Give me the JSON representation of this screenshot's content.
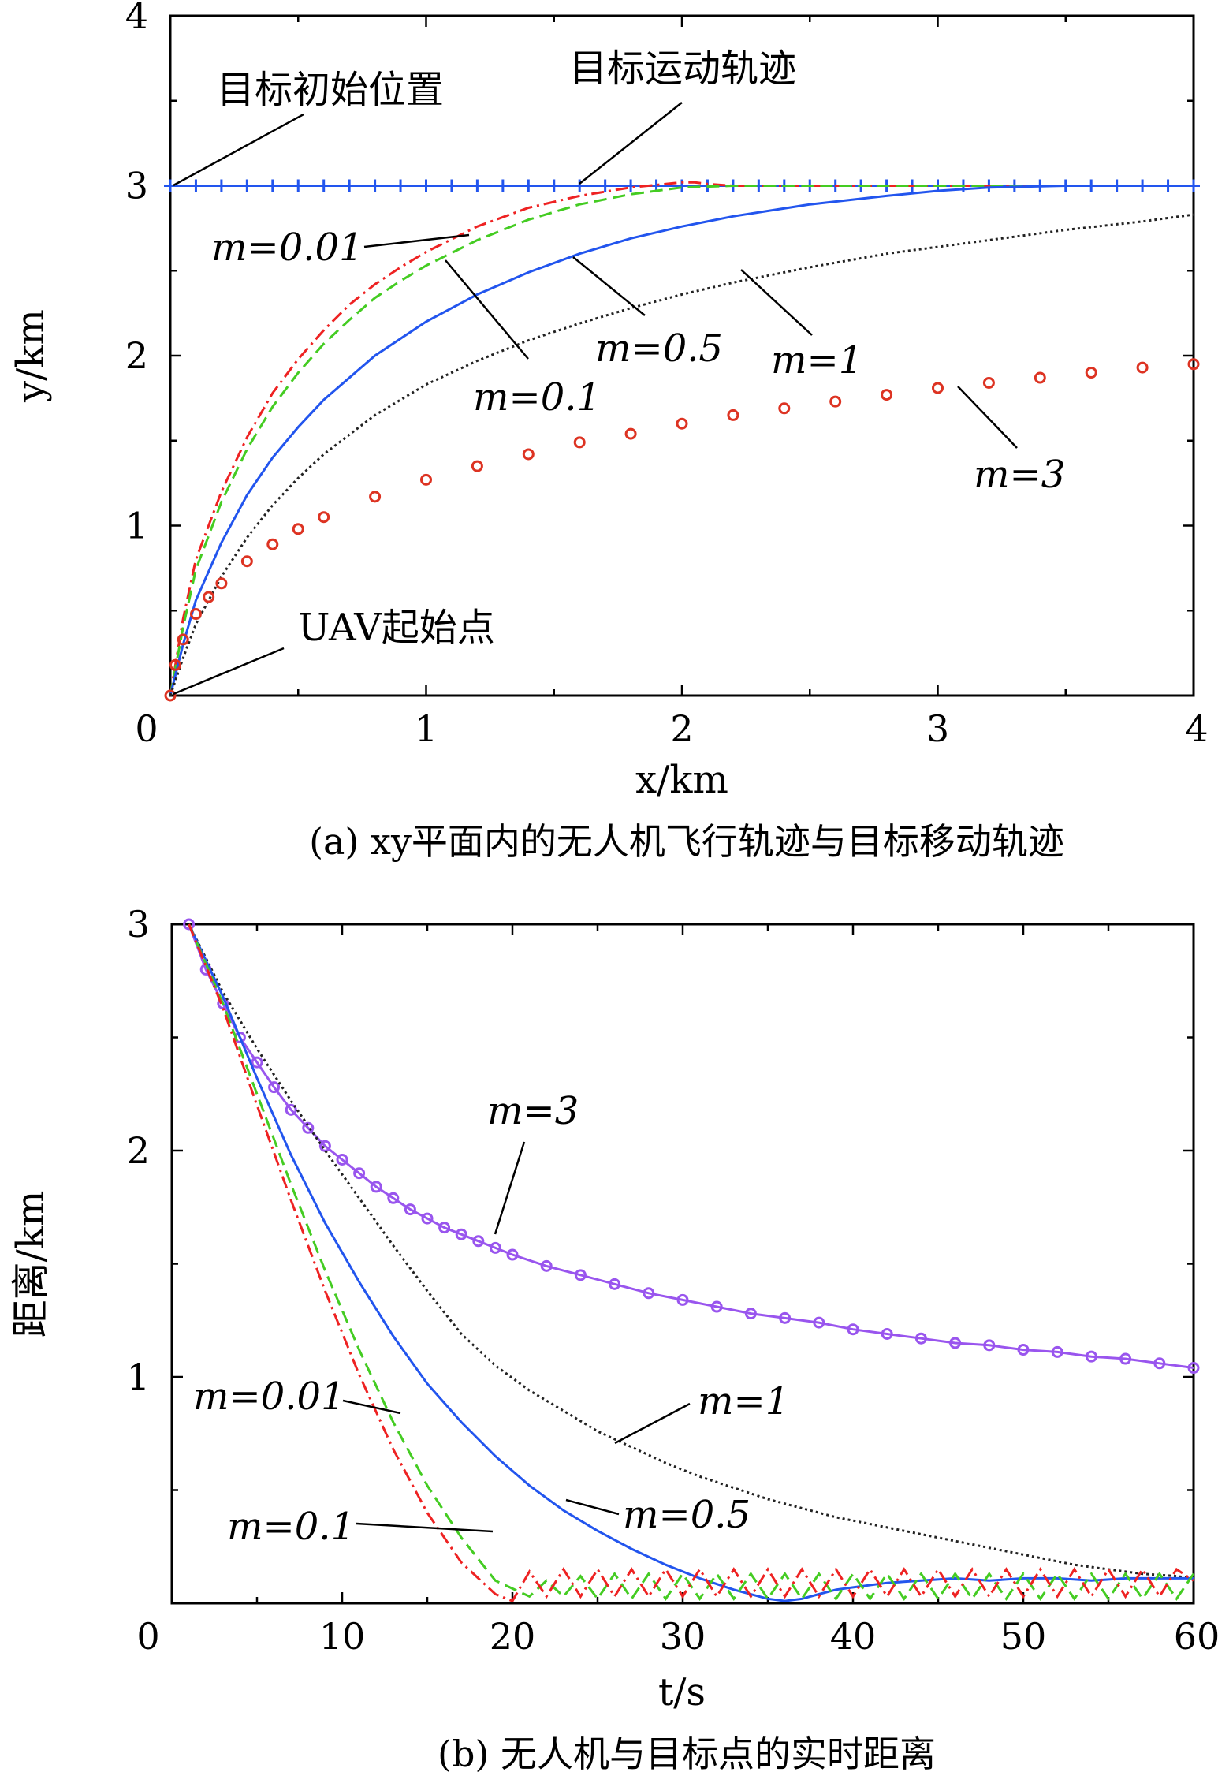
{
  "chart_data": [
    {
      "type": "line",
      "caption": "(a) xy平面内的无人机飞行轨迹与目标移动轨迹",
      "xlabel": "x/km",
      "ylabel": "y/km",
      "xlim": [
        0,
        4
      ],
      "ylim": [
        0,
        4
      ],
      "xticks": [
        "0",
        "1",
        "2",
        "3",
        "4"
      ],
      "yticks": [
        "0",
        "1",
        "2",
        "3",
        "4"
      ],
      "grid": false,
      "annotations": {
        "target_start": "目标初始位置",
        "target_path": "目标运动轨迹",
        "uav_start": "UAV起始点",
        "m001": "m=0.01",
        "m01": "m=0.1",
        "m05": "m=0.5",
        "m1": "m=1",
        "m3": "m=3"
      },
      "series": [
        {
          "name": "目标运动轨迹",
          "color": "#2255ee",
          "style": "plus-marker",
          "x": [
            0.0,
            0.1,
            0.2,
            0.3,
            0.4,
            0.5,
            0.6,
            0.7,
            0.8,
            0.9,
            1.0,
            1.1,
            1.2,
            1.3,
            1.4,
            1.5,
            1.6,
            1.7,
            1.8,
            1.9,
            2.0,
            2.1,
            2.2,
            2.3,
            2.4,
            2.5,
            2.6,
            2.7,
            2.8,
            2.9,
            3.0,
            3.1,
            3.2,
            3.3,
            3.4,
            3.5,
            3.6,
            3.7,
            3.8,
            3.9,
            4.0
          ],
          "y": [
            3,
            3,
            3,
            3,
            3,
            3,
            3,
            3,
            3,
            3,
            3,
            3,
            3,
            3,
            3,
            3,
            3,
            3,
            3,
            3,
            3,
            3,
            3,
            3,
            3,
            3,
            3,
            3,
            3,
            3,
            3,
            3,
            3,
            3,
            3,
            3,
            3,
            3,
            3,
            3,
            3
          ]
        },
        {
          "name": "m=0.01",
          "color": "#ee2222",
          "style": "dashdot",
          "x": [
            0,
            0.05,
            0.1,
            0.2,
            0.3,
            0.4,
            0.5,
            0.6,
            0.7,
            0.8,
            0.9,
            1.0,
            1.2,
            1.4,
            1.6,
            1.8,
            2.0,
            2.05,
            2.1,
            2.2,
            2.5,
            3.0,
            3.5,
            4.0
          ],
          "y": [
            0,
            0.45,
            0.8,
            1.2,
            1.52,
            1.78,
            1.98,
            2.15,
            2.3,
            2.42,
            2.52,
            2.61,
            2.76,
            2.87,
            2.94,
            2.99,
            3.02,
            3.02,
            3.01,
            3.0,
            3.0,
            3.0,
            3.0,
            3.0
          ]
        },
        {
          "name": "m=0.1",
          "color": "#44cc22",
          "style": "dashed",
          "x": [
            0,
            0.05,
            0.1,
            0.2,
            0.3,
            0.4,
            0.5,
            0.6,
            0.7,
            0.8,
            0.9,
            1.0,
            1.2,
            1.4,
            1.6,
            1.8,
            2.0,
            2.2,
            2.5,
            3.0,
            3.5,
            4.0
          ],
          "y": [
            0,
            0.4,
            0.74,
            1.14,
            1.45,
            1.7,
            1.9,
            2.07,
            2.21,
            2.34,
            2.44,
            2.53,
            2.68,
            2.8,
            2.89,
            2.95,
            2.99,
            3.0,
            3.0,
            3.0,
            3.0,
            3.0
          ]
        },
        {
          "name": "m=0.5",
          "color": "#2255ee",
          "style": "solid",
          "x": [
            0,
            0.05,
            0.1,
            0.2,
            0.3,
            0.4,
            0.5,
            0.6,
            0.8,
            1.0,
            1.2,
            1.4,
            1.6,
            1.8,
            2.0,
            2.2,
            2.5,
            2.8,
            3.0,
            3.2,
            3.5,
            3.8,
            4.0
          ],
          "y": [
            0,
            0.3,
            0.56,
            0.9,
            1.18,
            1.4,
            1.58,
            1.74,
            2.0,
            2.2,
            2.36,
            2.49,
            2.6,
            2.69,
            2.76,
            2.82,
            2.89,
            2.94,
            2.97,
            2.99,
            3.0,
            3.0,
            3.0
          ]
        },
        {
          "name": "m=1",
          "color": "#222222",
          "style": "dotted",
          "x": [
            0,
            0.05,
            0.1,
            0.2,
            0.3,
            0.4,
            0.5,
            0.6,
            0.8,
            1.0,
            1.2,
            1.4,
            1.6,
            1.8,
            2.0,
            2.2,
            2.5,
            2.8,
            3.0,
            3.2,
            3.5,
            3.8,
            4.0
          ],
          "y": [
            0,
            0.22,
            0.42,
            0.7,
            0.93,
            1.12,
            1.28,
            1.42,
            1.65,
            1.83,
            1.97,
            2.09,
            2.19,
            2.28,
            2.36,
            2.43,
            2.52,
            2.6,
            2.64,
            2.68,
            2.74,
            2.79,
            2.83
          ]
        },
        {
          "name": "m=3",
          "color": "#dd3322",
          "style": "circle-marker",
          "x": [
            0,
            0.02,
            0.05,
            0.1,
            0.15,
            0.2,
            0.3,
            0.4,
            0.5,
            0.6,
            0.8,
            1.0,
            1.2,
            1.4,
            1.6,
            1.8,
            2.0,
            2.2,
            2.4,
            2.6,
            2.8,
            3.0,
            3.2,
            3.4,
            3.6,
            3.8,
            4.0
          ],
          "y": [
            0,
            0.18,
            0.33,
            0.48,
            0.58,
            0.66,
            0.79,
            0.89,
            0.98,
            1.05,
            1.17,
            1.27,
            1.35,
            1.42,
            1.49,
            1.54,
            1.6,
            1.65,
            1.69,
            1.73,
            1.77,
            1.81,
            1.84,
            1.87,
            1.9,
            1.93,
            1.95
          ]
        }
      ]
    },
    {
      "type": "line",
      "caption": "(b) 无人机与目标点的实时距离",
      "xlabel": "t/s",
      "ylabel": "距离/km",
      "xlim": [
        0,
        60
      ],
      "ylim": [
        0,
        3
      ],
      "xticks": [
        "0",
        "10",
        "20",
        "30",
        "40",
        "50",
        "60"
      ],
      "yticks": [
        "0",
        "1",
        "2",
        "3"
      ],
      "grid": false,
      "annotations": {
        "m3": "m=3",
        "m1": "m=1",
        "m001": "m=0.01",
        "m05": "m=0.5",
        "m01": "m=0.1"
      },
      "series": [
        {
          "name": "m=3",
          "color": "#9955ee",
          "style": "circle-marker",
          "x": [
            1,
            2,
            3,
            4,
            5,
            6,
            7,
            8,
            9,
            10,
            11,
            12,
            13,
            14,
            15,
            16,
            17,
            18,
            19,
            20,
            22,
            24,
            26,
            28,
            30,
            32,
            34,
            36,
            38,
            40,
            42,
            44,
            46,
            48,
            50,
            52,
            54,
            56,
            58,
            60
          ],
          "y": [
            3.0,
            2.8,
            2.65,
            2.5,
            2.39,
            2.28,
            2.18,
            2.1,
            2.02,
            1.96,
            1.9,
            1.84,
            1.79,
            1.74,
            1.7,
            1.66,
            1.63,
            1.6,
            1.57,
            1.54,
            1.49,
            1.45,
            1.41,
            1.37,
            1.34,
            1.31,
            1.28,
            1.26,
            1.24,
            1.21,
            1.19,
            1.17,
            1.15,
            1.14,
            1.12,
            1.11,
            1.09,
            1.08,
            1.06,
            1.04
          ]
        },
        {
          "name": "m=1",
          "color": "#222222",
          "style": "dotted",
          "x": [
            1,
            3,
            5,
            7,
            9,
            11,
            13,
            15,
            17,
            19,
            21,
            23,
            25,
            27,
            29,
            31,
            33,
            35,
            37,
            39,
            41,
            43,
            45,
            47,
            49,
            51,
            53,
            55,
            57,
            59,
            60
          ],
          "y": [
            3.0,
            2.7,
            2.45,
            2.22,
            2.0,
            1.79,
            1.58,
            1.38,
            1.19,
            1.05,
            0.94,
            0.85,
            0.76,
            0.69,
            0.62,
            0.56,
            0.51,
            0.46,
            0.42,
            0.38,
            0.35,
            0.32,
            0.29,
            0.26,
            0.23,
            0.2,
            0.17,
            0.15,
            0.13,
            0.12,
            0.11
          ]
        },
        {
          "name": "m=0.5",
          "color": "#2255ee",
          "style": "solid",
          "x": [
            1,
            3,
            5,
            7,
            9,
            11,
            13,
            15,
            17,
            19,
            21,
            23,
            25,
            27,
            29,
            31,
            33,
            35,
            36,
            37,
            38,
            39,
            40,
            42,
            44,
            46,
            48,
            50,
            52,
            54,
            56,
            58,
            60
          ],
          "y": [
            3.0,
            2.68,
            2.32,
            1.98,
            1.68,
            1.42,
            1.18,
            0.97,
            0.8,
            0.65,
            0.52,
            0.41,
            0.32,
            0.24,
            0.17,
            0.11,
            0.06,
            0.02,
            0.01,
            0.02,
            0.04,
            0.06,
            0.07,
            0.09,
            0.1,
            0.11,
            0.1,
            0.11,
            0.11,
            0.1,
            0.11,
            0.11,
            0.11
          ]
        },
        {
          "name": "m=0.1",
          "color": "#44cc22",
          "style": "dashed",
          "x": [
            1,
            3,
            5,
            7,
            9,
            11,
            13,
            15,
            17,
            19,
            21,
            22,
            23,
            24,
            25,
            26,
            27,
            28,
            29,
            30,
            31,
            32,
            33,
            34,
            35,
            36,
            37,
            38,
            39,
            40,
            41,
            42,
            43,
            44,
            45,
            46,
            47,
            48,
            49,
            50,
            51,
            52,
            53,
            54,
            55,
            56,
            57,
            58,
            59,
            60
          ],
          "y": [
            3.0,
            2.65,
            2.25,
            1.85,
            1.47,
            1.12,
            0.8,
            0.52,
            0.29,
            0.1,
            0.03,
            0.1,
            0.03,
            0.12,
            0.02,
            0.13,
            0.02,
            0.13,
            0.02,
            0.13,
            0.02,
            0.13,
            0.02,
            0.13,
            0.02,
            0.13,
            0.02,
            0.13,
            0.02,
            0.13,
            0.02,
            0.13,
            0.02,
            0.13,
            0.02,
            0.13,
            0.02,
            0.13,
            0.02,
            0.13,
            0.02,
            0.13,
            0.02,
            0.13,
            0.02,
            0.13,
            0.02,
            0.13,
            0.02,
            0.13
          ]
        },
        {
          "name": "m=0.01",
          "color": "#ee2222",
          "style": "dashdot",
          "x": [
            1,
            3,
            5,
            7,
            9,
            11,
            13,
            15,
            17,
            19,
            20,
            21,
            22,
            23,
            24,
            25,
            26,
            27,
            28,
            29,
            30,
            31,
            32,
            33,
            34,
            35,
            36,
            37,
            38,
            39,
            40,
            41,
            42,
            43,
            44,
            45,
            46,
            47,
            48,
            49,
            50,
            51,
            52,
            53,
            54,
            55,
            56,
            57,
            58,
            59,
            60
          ],
          "y": [
            3.0,
            2.63,
            2.2,
            1.78,
            1.38,
            1.01,
            0.68,
            0.4,
            0.18,
            0.04,
            0.01,
            0.14,
            0.03,
            0.15,
            0.03,
            0.15,
            0.03,
            0.15,
            0.03,
            0.15,
            0.03,
            0.15,
            0.03,
            0.15,
            0.03,
            0.15,
            0.03,
            0.15,
            0.03,
            0.15,
            0.03,
            0.15,
            0.03,
            0.15,
            0.03,
            0.15,
            0.03,
            0.15,
            0.03,
            0.15,
            0.03,
            0.15,
            0.03,
            0.15,
            0.03,
            0.15,
            0.03,
            0.15,
            0.03,
            0.15,
            0.1
          ]
        }
      ]
    }
  ]
}
